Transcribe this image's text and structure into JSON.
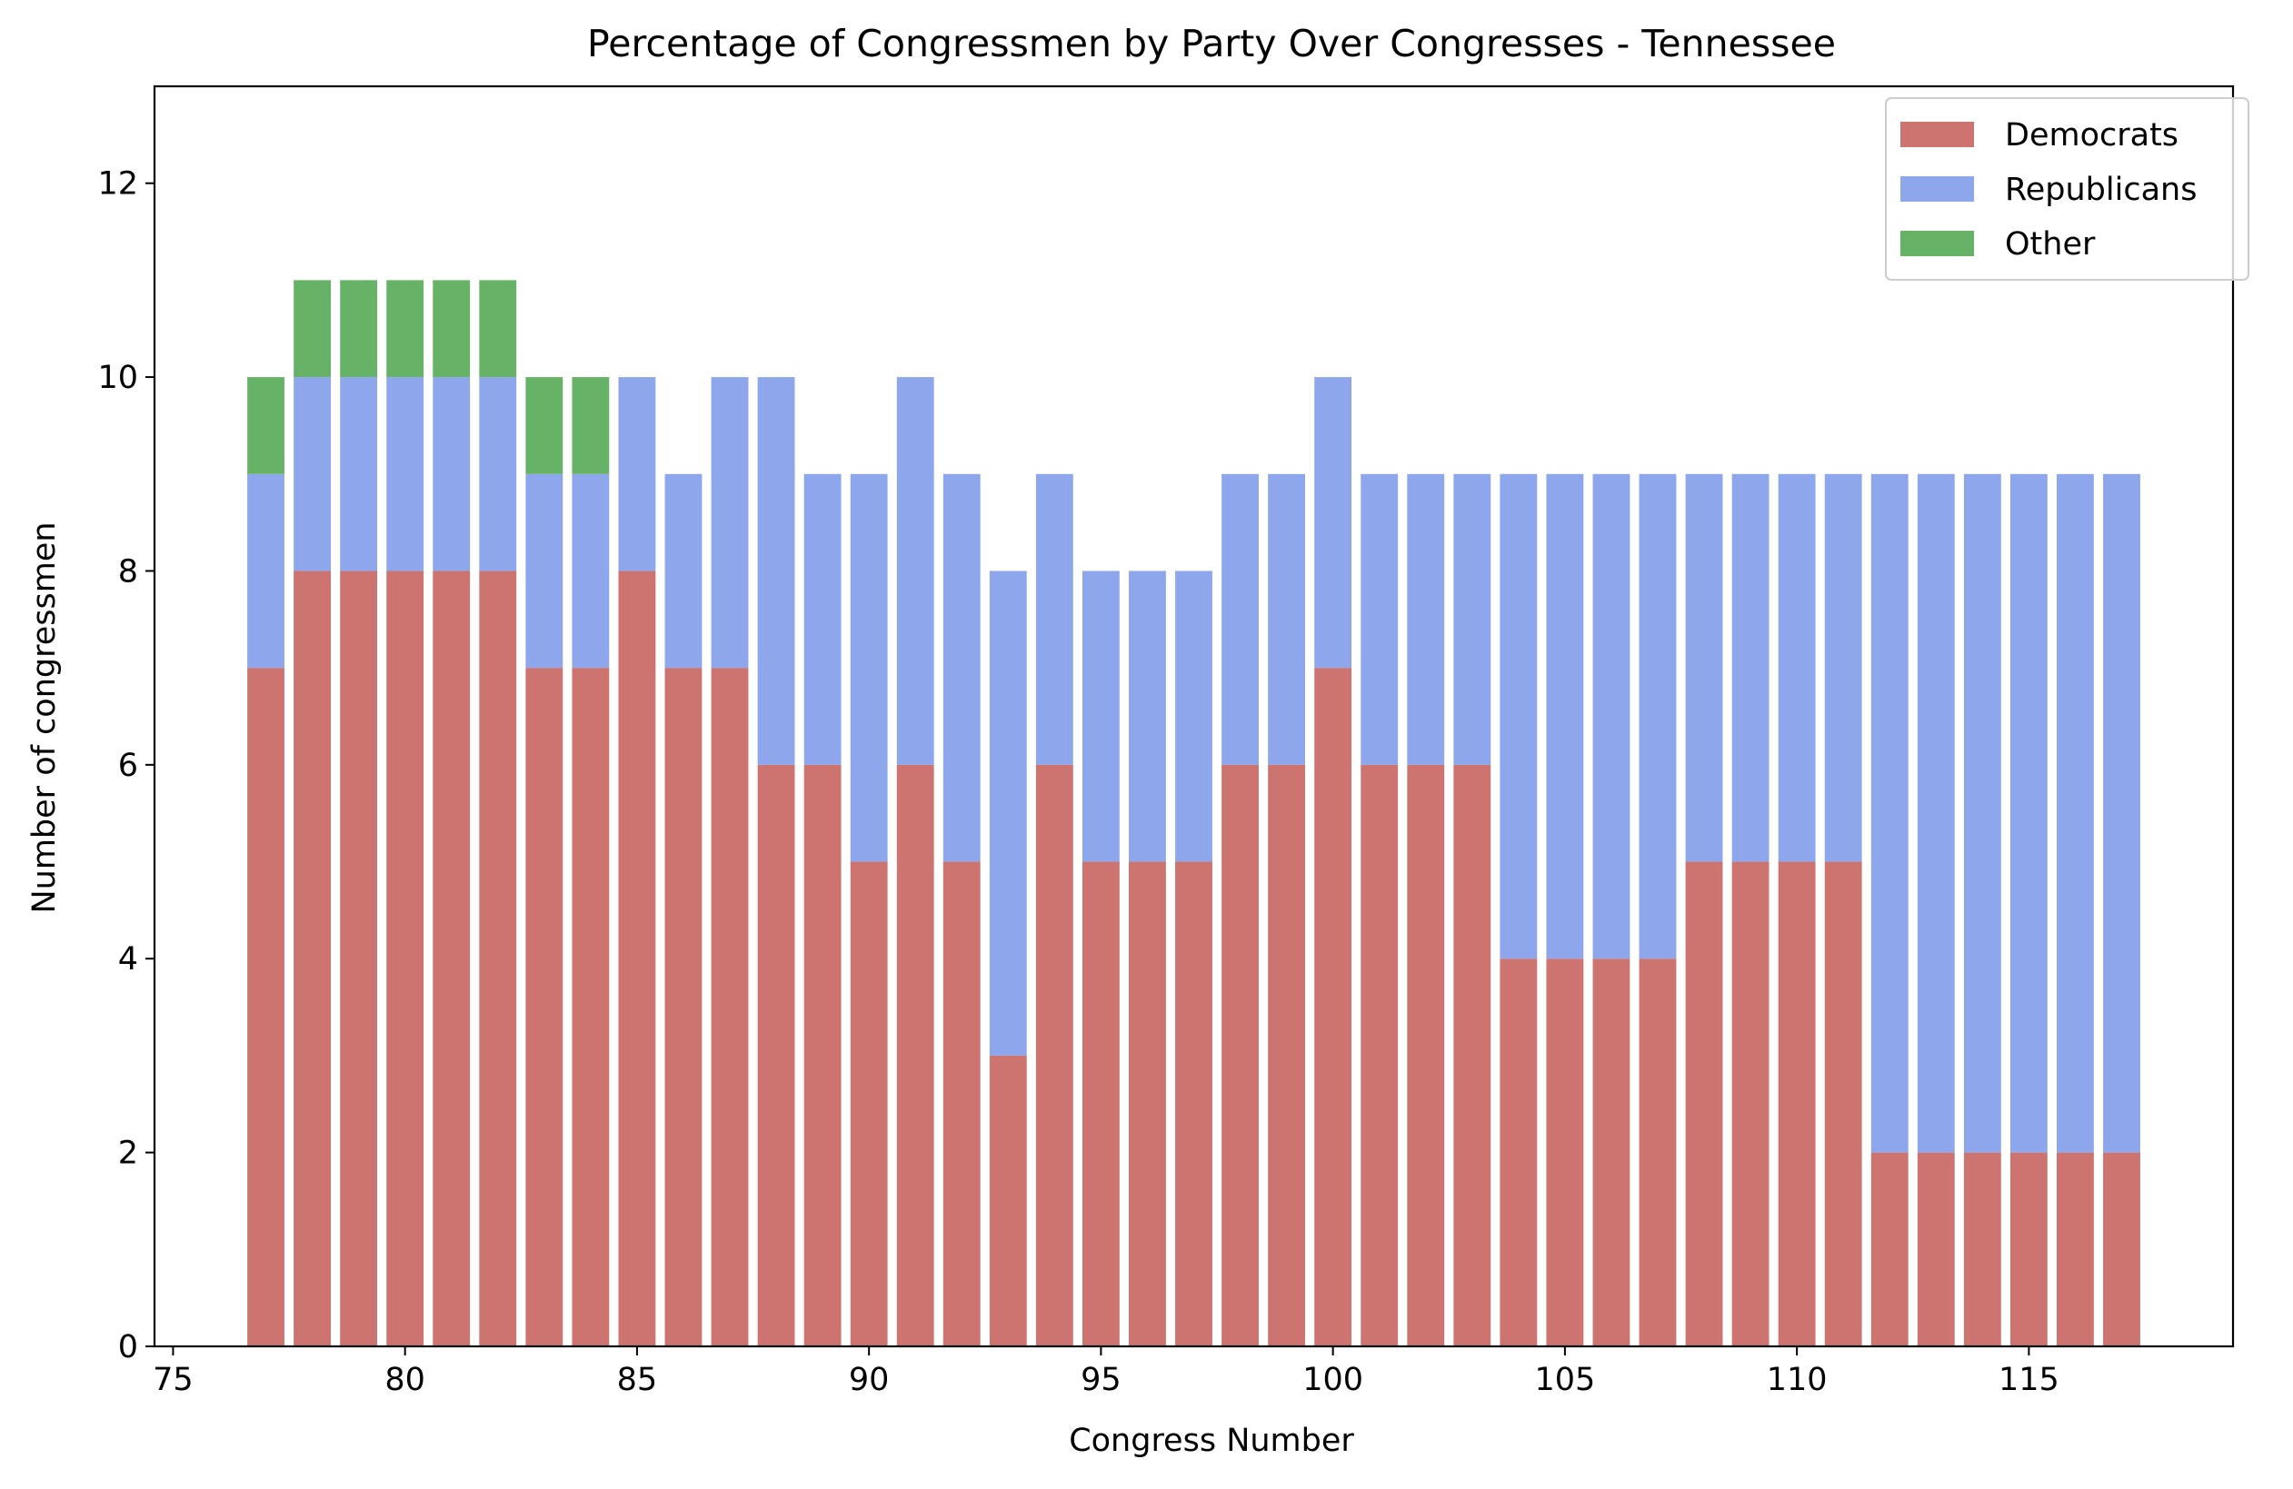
{
  "chart_data": {
    "type": "bar",
    "stacked": true,
    "title": "Percentage of Congressmen by Party Over Congresses - Tennessee",
    "xlabel": "Congress Number",
    "ylabel": "Number of congressmen",
    "xlim": [
      74.6,
      119.4
    ],
    "ylim": [
      0,
      13
    ],
    "xticks": [
      75,
      80,
      85,
      90,
      95,
      100,
      105,
      110,
      115
    ],
    "yticks": [
      0,
      2,
      4,
      6,
      8,
      10,
      12
    ],
    "grid": false,
    "legend_position": "top-right",
    "x": [
      77,
      78,
      79,
      80,
      81,
      82,
      83,
      84,
      85,
      86,
      87,
      88,
      89,
      90,
      91,
      92,
      93,
      94,
      95,
      96,
      97,
      98,
      99,
      100,
      101,
      102,
      103,
      104,
      105,
      106,
      107,
      108,
      109,
      110,
      111,
      112,
      113,
      114,
      115,
      116,
      117
    ],
    "series": [
      {
        "name": "Democrats",
        "color": "#CD7471",
        "values": [
          7,
          8,
          8,
          8,
          8,
          8,
          7,
          7,
          8,
          7,
          7,
          6,
          6,
          5,
          6,
          5,
          3,
          6,
          5,
          5,
          5,
          6,
          6,
          7,
          6,
          6,
          6,
          4,
          4,
          4,
          4,
          5,
          5,
          5,
          5,
          2,
          2,
          2,
          2,
          2,
          2
        ]
      },
      {
        "name": "Republicans",
        "color": "#8DA6EC",
        "values": [
          2,
          2,
          2,
          2,
          2,
          2,
          2,
          2,
          2,
          2,
          3,
          4,
          3,
          4,
          4,
          4,
          5,
          3,
          3,
          3,
          3,
          3,
          3,
          3,
          3,
          3,
          3,
          5,
          5,
          5,
          5,
          4,
          4,
          4,
          4,
          7,
          7,
          7,
          7,
          7,
          7
        ]
      },
      {
        "name": "Other",
        "color": "#66B266",
        "values": [
          1,
          1,
          1,
          1,
          1,
          1,
          1,
          1,
          0,
          0,
          0,
          0,
          0,
          0,
          0,
          0,
          0,
          0,
          0,
          0,
          0,
          0,
          0,
          0,
          0,
          0,
          0,
          0,
          0,
          0,
          0,
          0,
          0,
          0,
          0,
          0,
          0,
          0,
          0,
          0,
          0
        ]
      }
    ]
  }
}
